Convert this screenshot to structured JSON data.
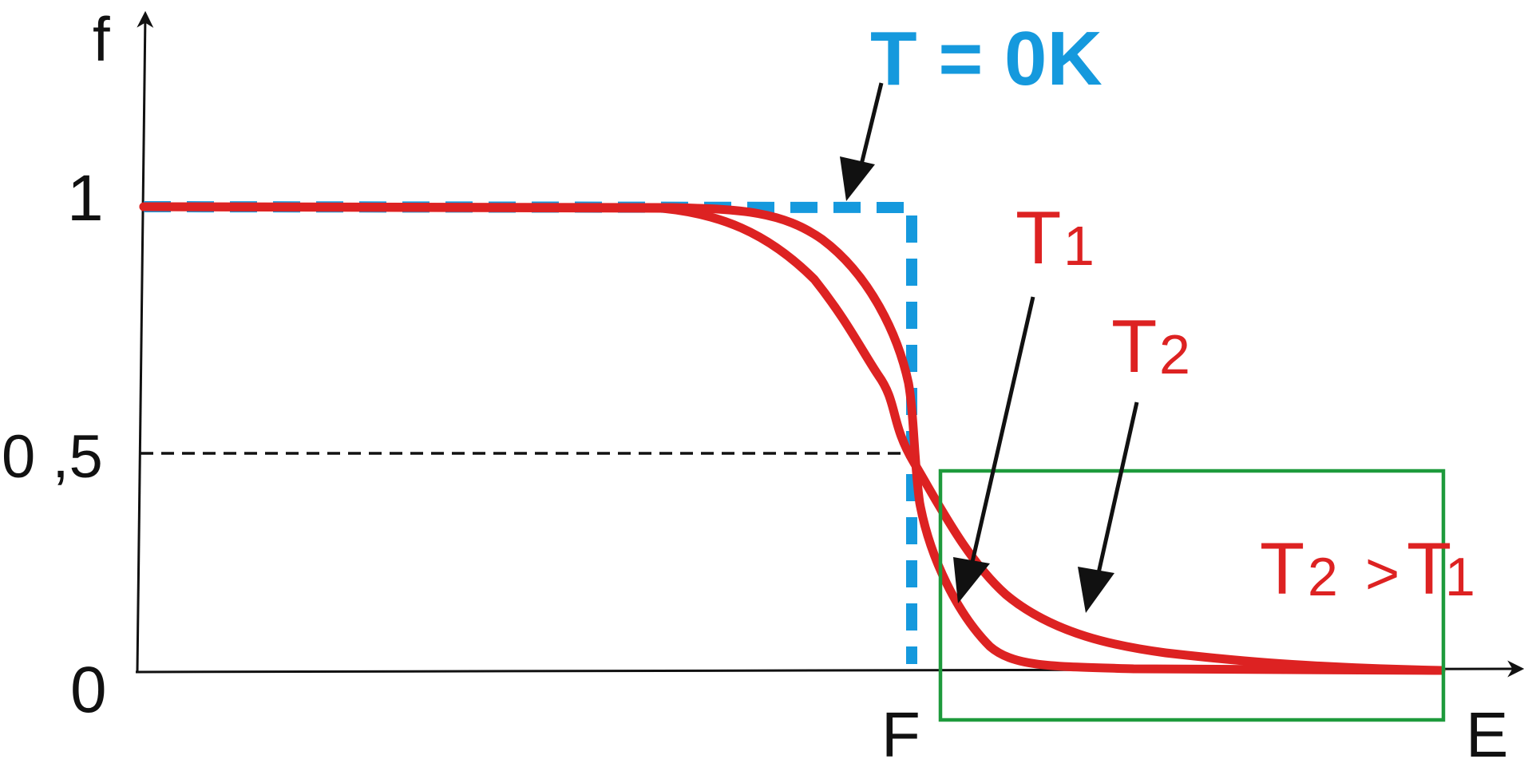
{
  "axes": {
    "y_label": "f",
    "x_label": "E",
    "fermi_label": "F",
    "tick_one": "1",
    "tick_half": "0 ,5",
    "tick_zero": "0"
  },
  "labels": {
    "t_zero": "T = 0K",
    "t1_main": "T",
    "t1_sub": "1",
    "t2_main": "T",
    "t2_sub": "2",
    "compare_t2_main": "T",
    "compare_t2_sub": "2",
    "compare_op": ">",
    "compare_t1_main": "T",
    "compare_t1_sub": "1"
  },
  "colors": {
    "axis": "#111111",
    "t0_curve": "#1599dd",
    "t_curves": "#dd2222",
    "highlight_box": "#1e9a3c",
    "arrow": "#111111"
  }
}
